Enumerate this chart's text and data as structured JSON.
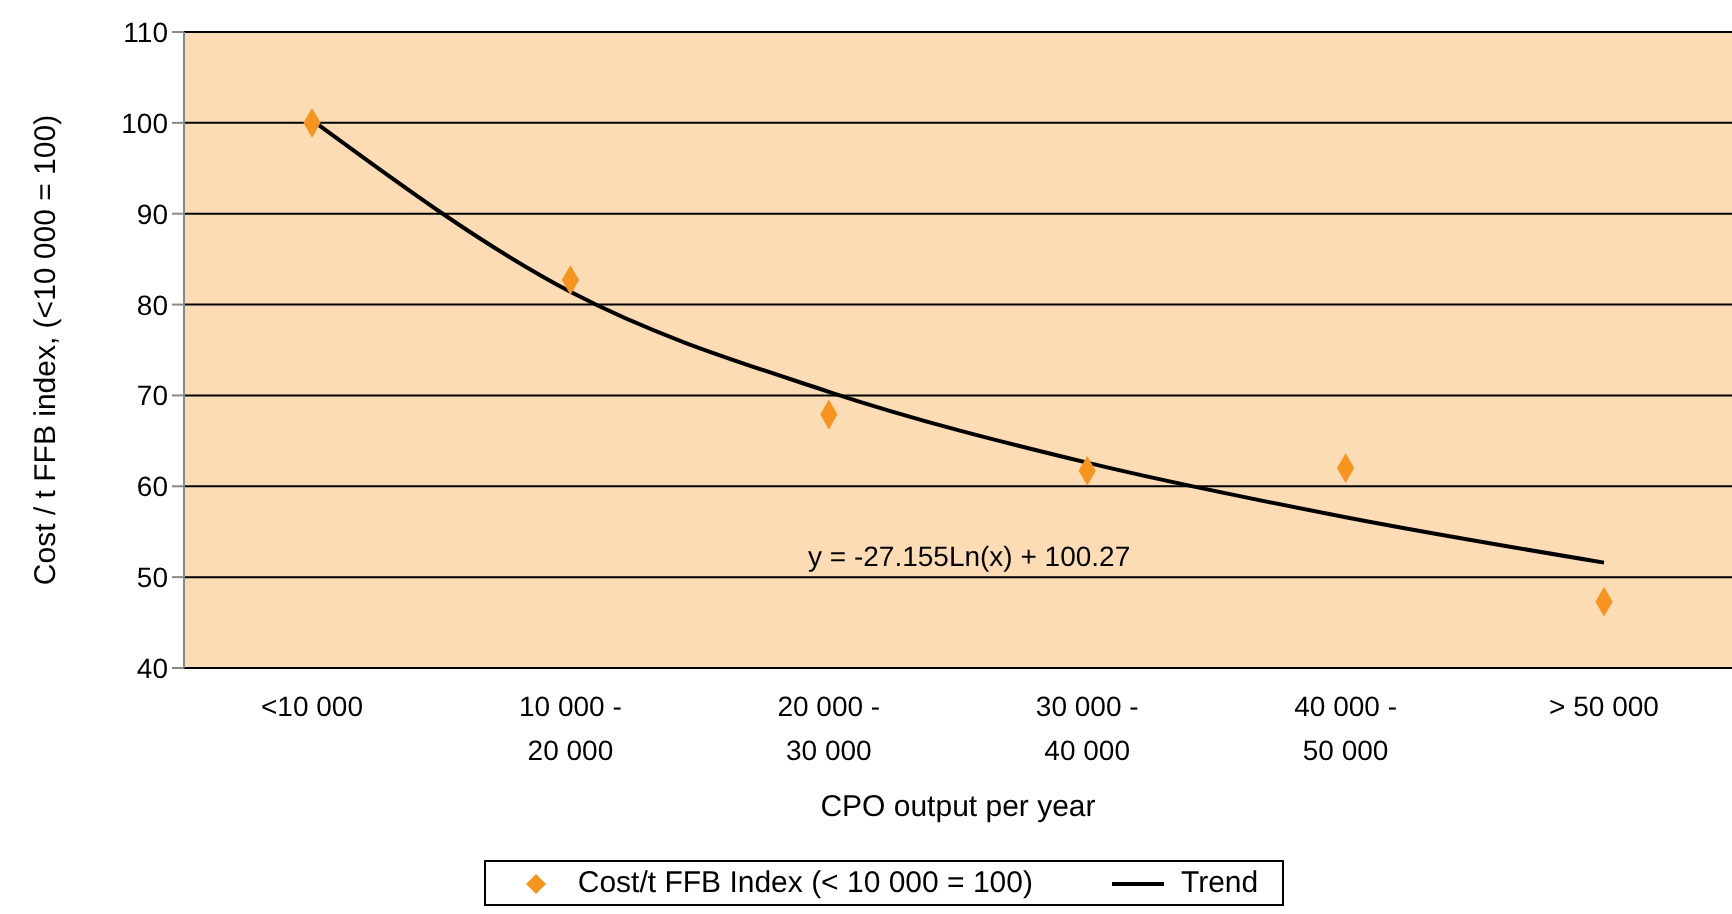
{
  "chart_data": {
    "type": "scatter",
    "xlabel": "CPO output per year",
    "ylabel": "Cost / t FFB index, (<10 000 = 100)",
    "categories": [
      "<10 000",
      "10 000 -\n20 000",
      "20 000 -\n30 000",
      "30 000 -\n40 000",
      "40 000 -\n50 000",
      "> 50 000"
    ],
    "series": [
      {
        "name": "Cost/t FFB Index (< 10 000 = 100)",
        "color": "#f7941d",
        "marker": "diamond",
        "values": [
          100,
          82.7,
          67.9,
          61.7,
          62,
          47.3
        ]
      },
      {
        "name": "Trend",
        "type": "line",
        "color": "#000000",
        "line_style": "solid",
        "values": [
          100.3,
          81.4,
          70.4,
          62.6,
          56.6,
          51.6
        ]
      }
    ],
    "ylim": [
      40,
      110
    ],
    "yticks": [
      40,
      50,
      60,
      70,
      80,
      90,
      100,
      110
    ],
    "grid": "y",
    "legend": "bottom",
    "annotations": [
      "y = -27.155Ln(x) + 100.27"
    ]
  }
}
